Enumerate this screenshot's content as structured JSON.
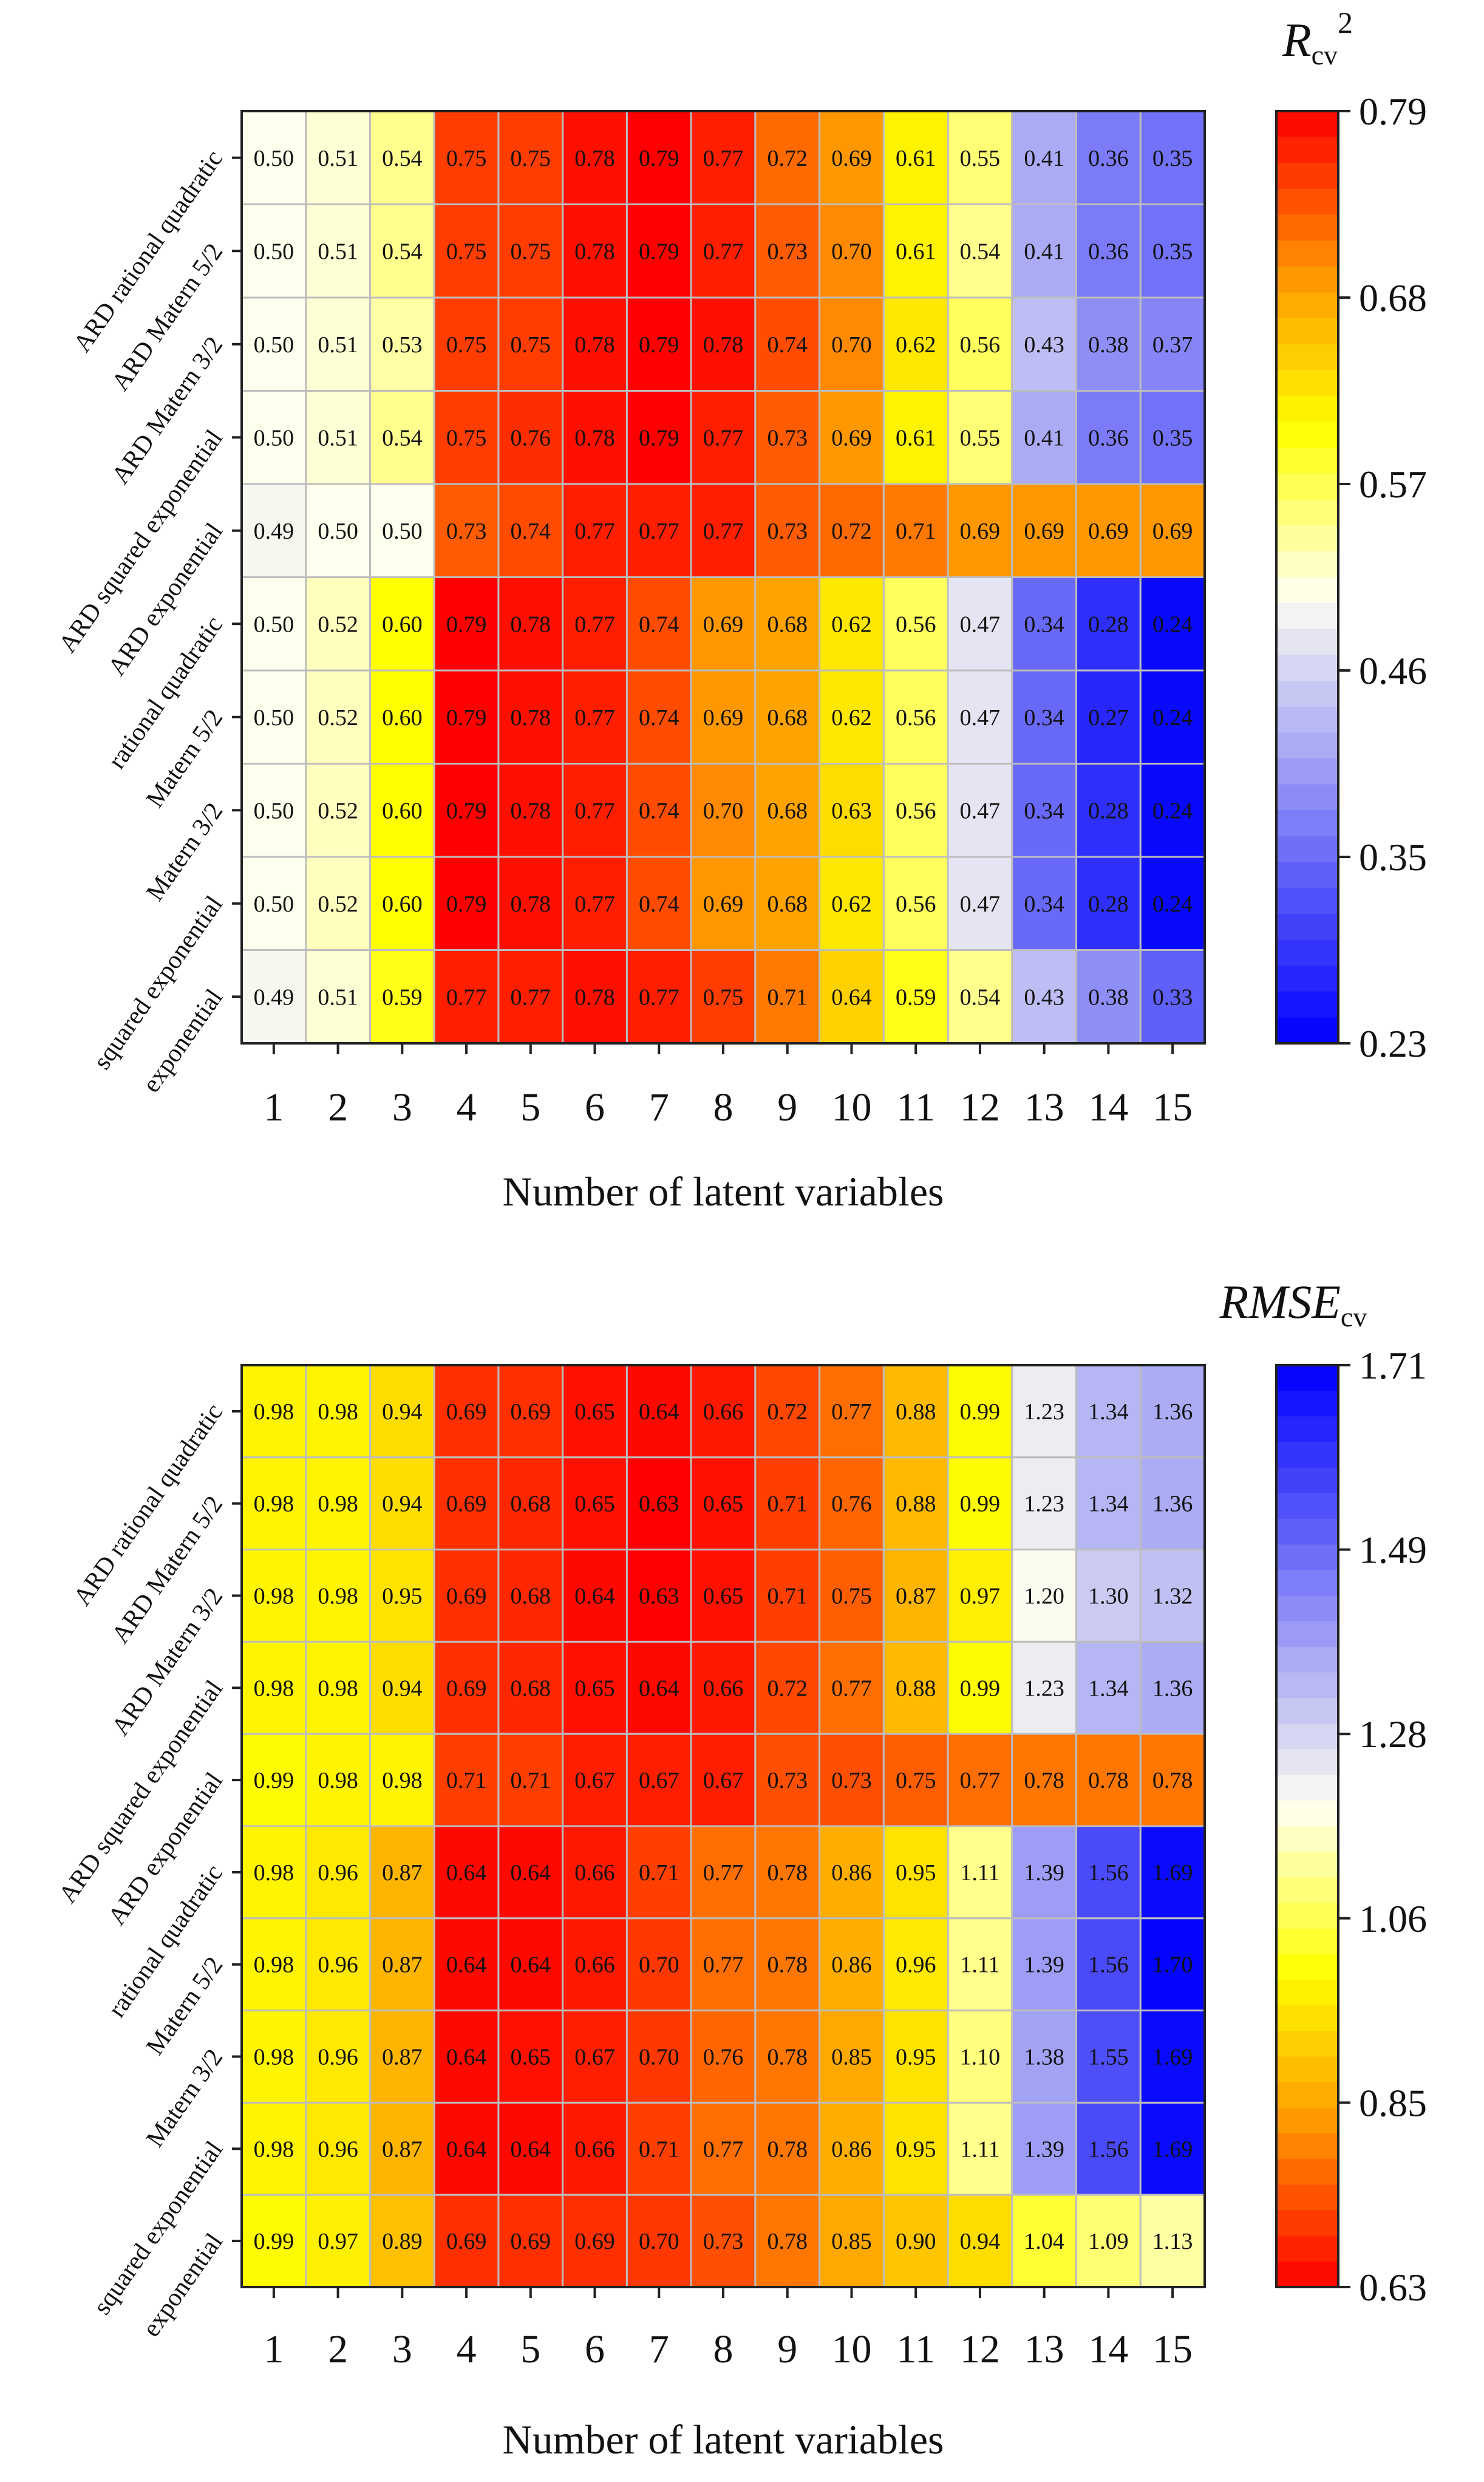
{
  "chart_data": [
    {
      "type": "heatmap",
      "title": "",
      "colorbar_title": "R",
      "colorbar_title_sub": "cv",
      "colorbar_title_sup": "2",
      "xlabel": "Number of latent variables",
      "ylabel": "",
      "x": [
        "1",
        "2",
        "3",
        "4",
        "5",
        "6",
        "7",
        "8",
        "9",
        "10",
        "11",
        "12",
        "13",
        "14",
        "15"
      ],
      "y_labels": [
        "ARD rational quadratic",
        "ARD Matern 5/2",
        "ARD Matern 3/2",
        "ARD squared exponential",
        "ARD exponential",
        "rational quadratic",
        "Matern 5/2",
        "Matern 3/2",
        "squared exponential",
        "exponential"
      ],
      "values": [
        [
          "0.50",
          "0.51",
          "0.54",
          "0.75",
          "0.75",
          "0.78",
          "0.79",
          "0.77",
          "0.72",
          "0.69",
          "0.61",
          "0.55",
          "0.41",
          "0.36",
          "0.35"
        ],
        [
          "0.50",
          "0.51",
          "0.54",
          "0.75",
          "0.75",
          "0.78",
          "0.79",
          "0.77",
          "0.73",
          "0.70",
          "0.61",
          "0.54",
          "0.41",
          "0.36",
          "0.35"
        ],
        [
          "0.50",
          "0.51",
          "0.53",
          "0.75",
          "0.75",
          "0.78",
          "0.79",
          "0.78",
          "0.74",
          "0.70",
          "0.62",
          "0.56",
          "0.43",
          "0.38",
          "0.37"
        ],
        [
          "0.50",
          "0.51",
          "0.54",
          "0.75",
          "0.76",
          "0.78",
          "0.79",
          "0.77",
          "0.73",
          "0.69",
          "0.61",
          "0.55",
          "0.41",
          "0.36",
          "0.35"
        ],
        [
          "0.49",
          "0.50",
          "0.50",
          "0.73",
          "0.74",
          "0.77",
          "0.77",
          "0.77",
          "0.73",
          "0.72",
          "0.71",
          "0.69",
          "0.69",
          "0.69",
          "0.69"
        ],
        [
          "0.50",
          "0.52",
          "0.60",
          "0.79",
          "0.78",
          "0.77",
          "0.74",
          "0.69",
          "0.68",
          "0.62",
          "0.56",
          "0.47",
          "0.34",
          "0.28",
          "0.24"
        ],
        [
          "0.50",
          "0.52",
          "0.60",
          "0.79",
          "0.78",
          "0.77",
          "0.74",
          "0.69",
          "0.68",
          "0.62",
          "0.56",
          "0.47",
          "0.34",
          "0.27",
          "0.24"
        ],
        [
          "0.50",
          "0.52",
          "0.60",
          "0.79",
          "0.78",
          "0.77",
          "0.74",
          "0.70",
          "0.68",
          "0.63",
          "0.56",
          "0.47",
          "0.34",
          "0.28",
          "0.24"
        ],
        [
          "0.50",
          "0.52",
          "0.60",
          "0.79",
          "0.78",
          "0.77",
          "0.74",
          "0.69",
          "0.68",
          "0.62",
          "0.56",
          "0.47",
          "0.34",
          "0.28",
          "0.24"
        ],
        [
          "0.49",
          "0.51",
          "0.59",
          "0.77",
          "0.77",
          "0.78",
          "0.77",
          "0.75",
          "0.71",
          "0.64",
          "0.59",
          "0.54",
          "0.43",
          "0.38",
          "0.33"
        ]
      ],
      "colorbar_ticks": [
        "0.79",
        "0.68",
        "0.57",
        "0.46",
        "0.35",
        "0.23"
      ],
      "colorbar_range": [
        0.23,
        0.79
      ],
      "colormap": "high=red, mid=yellow/white, low=blue",
      "colors": {
        "low": "#0000ff",
        "mid": "#fffff0",
        "yellow": "#ffff00",
        "orange": "#ff9900",
        "high": "#ff0000"
      }
    },
    {
      "type": "heatmap",
      "title": "",
      "colorbar_title": "RMSE",
      "colorbar_title_sub": "cv",
      "colorbar_title_sup": "",
      "xlabel": "Number of latent variables",
      "ylabel": "",
      "x": [
        "1",
        "2",
        "3",
        "4",
        "5",
        "6",
        "7",
        "8",
        "9",
        "10",
        "11",
        "12",
        "13",
        "14",
        "15"
      ],
      "y_labels": [
        "ARD rational quadratic",
        "ARD Matern 5/2",
        "ARD Matern 3/2",
        "ARD squared exponential",
        "ARD exponential",
        "rational quadratic",
        "Matern 5/2",
        "Matern 3/2",
        "squared exponential",
        "exponential"
      ],
      "values": [
        [
          "0.98",
          "0.98",
          "0.94",
          "0.69",
          "0.69",
          "0.65",
          "0.64",
          "0.66",
          "0.72",
          "0.77",
          "0.88",
          "0.99",
          "1.23",
          "1.34",
          "1.36"
        ],
        [
          "0.98",
          "0.98",
          "0.94",
          "0.69",
          "0.68",
          "0.65",
          "0.63",
          "0.65",
          "0.71",
          "0.76",
          "0.88",
          "0.99",
          "1.23",
          "1.34",
          "1.36"
        ],
        [
          "0.98",
          "0.98",
          "0.95",
          "0.69",
          "0.68",
          "0.64",
          "0.63",
          "0.65",
          "0.71",
          "0.75",
          "0.87",
          "0.97",
          "1.20",
          "1.30",
          "1.32"
        ],
        [
          "0.98",
          "0.98",
          "0.94",
          "0.69",
          "0.68",
          "0.65",
          "0.64",
          "0.66",
          "0.72",
          "0.77",
          "0.88",
          "0.99",
          "1.23",
          "1.34",
          "1.36"
        ],
        [
          "0.99",
          "0.98",
          "0.98",
          "0.71",
          "0.71",
          "0.67",
          "0.67",
          "0.67",
          "0.73",
          "0.73",
          "0.75",
          "0.77",
          "0.78",
          "0.78",
          "0.78"
        ],
        [
          "0.98",
          "0.96",
          "0.87",
          "0.64",
          "0.64",
          "0.66",
          "0.71",
          "0.77",
          "0.78",
          "0.86",
          "0.95",
          "1.11",
          "1.39",
          "1.56",
          "1.69"
        ],
        [
          "0.98",
          "0.96",
          "0.87",
          "0.64",
          "0.64",
          "0.66",
          "0.70",
          "0.77",
          "0.78",
          "0.86",
          "0.96",
          "1.11",
          "1.39",
          "1.56",
          "1.70"
        ],
        [
          "0.98",
          "0.96",
          "0.87",
          "0.64",
          "0.65",
          "0.67",
          "0.70",
          "0.76",
          "0.78",
          "0.85",
          "0.95",
          "1.10",
          "1.38",
          "1.55",
          "1.69"
        ],
        [
          "0.98",
          "0.96",
          "0.87",
          "0.64",
          "0.64",
          "0.66",
          "0.71",
          "0.77",
          "0.78",
          "0.86",
          "0.95",
          "1.11",
          "1.39",
          "1.56",
          "1.69"
        ],
        [
          "0.99",
          "0.97",
          "0.89",
          "0.69",
          "0.69",
          "0.69",
          "0.70",
          "0.73",
          "0.78",
          "0.85",
          "0.90",
          "0.94",
          "1.04",
          "1.09",
          "1.13"
        ]
      ],
      "colorbar_ticks": [
        "1.71",
        "1.49",
        "1.28",
        "1.06",
        "0.85",
        "0.63"
      ],
      "colorbar_range": [
        0.63,
        1.71
      ],
      "colormap": "low=red, mid=yellow/white, high=blue",
      "colors": {
        "low": "#0000ff",
        "mid": "#fffff0",
        "yellow": "#ffff00",
        "orange": "#ff9900",
        "high": "#ff0000"
      }
    }
  ]
}
